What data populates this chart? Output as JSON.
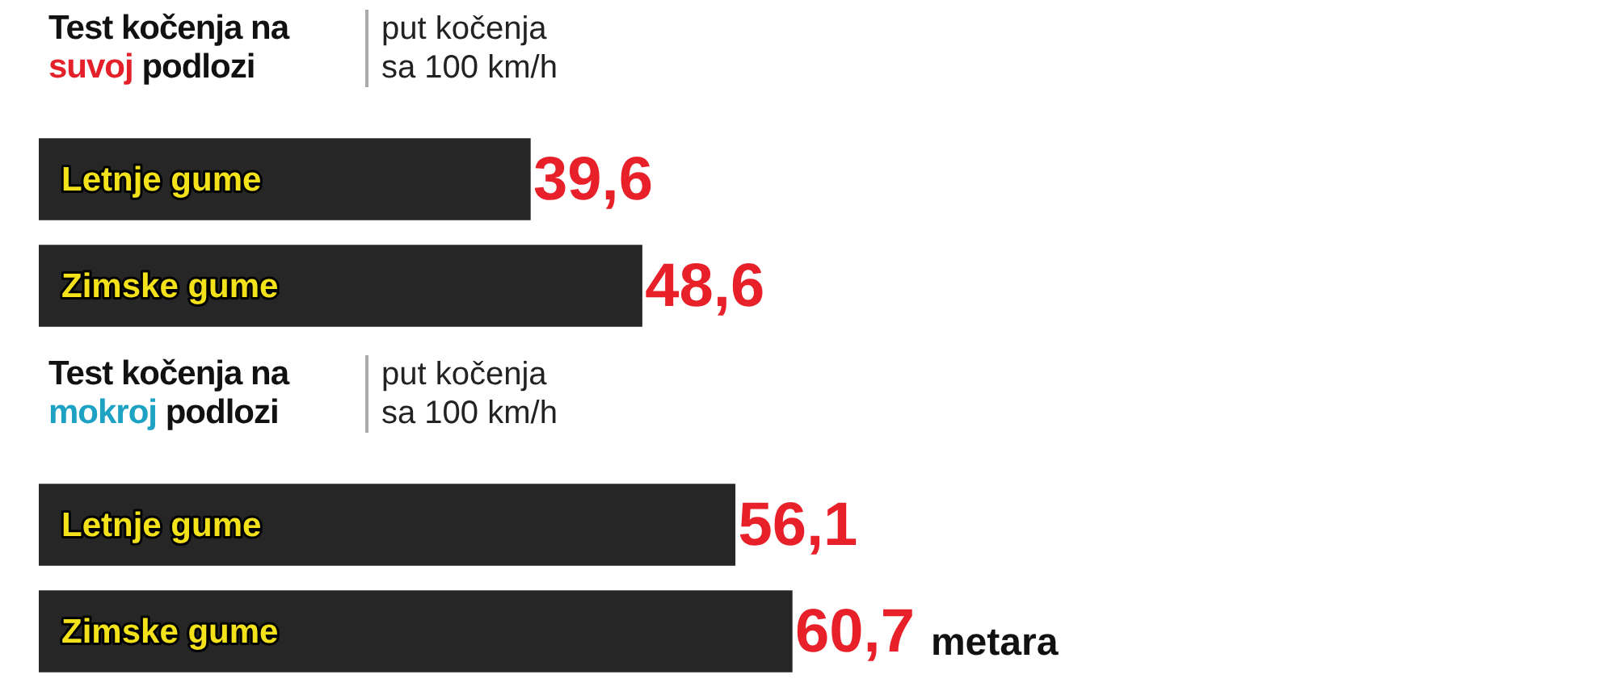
{
  "chart_data": [
    {
      "type": "bar",
      "title": "Test kočenja na suvoj podlozi",
      "subtitle": "put kočenja sa 100 km/h",
      "orientation": "horizontal",
      "categories": [
        "Letnje gume",
        "Zimske gume"
      ],
      "values": [
        39.6,
        48.6
      ],
      "color": "#262626",
      "value_labels": [
        "39,6",
        "48,6"
      ],
      "tick_labels": "y"
    },
    {
      "type": "bar",
      "title": "Test kočenja na mokroj podlozi",
      "subtitle": "put kočenja sa 100 km/h",
      "orientation": "horizontal",
      "categories": [
        "Letnje gume",
        "Zimske gume"
      ],
      "values": [
        56.1,
        60.7
      ],
      "color": "#262626",
      "value_labels": [
        "56,1",
        "60,7"
      ],
      "tick_labels": "y",
      "annotations": [
        "metara"
      ]
    }
  ]
}
